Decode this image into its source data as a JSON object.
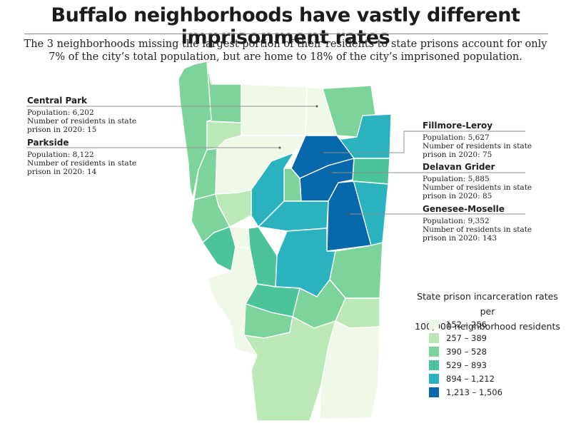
{
  "title": "Buffalo neighborhoods have vastly different imprisonment rates",
  "subtitle": "The 3 neighborhoods missing the largest portion of their residents to state prisons account for only 7% of the city’s total population, but are home to 18% of the city’s imprisoned population.",
  "callouts": [
    {
      "name": "Central Park",
      "lines": [
        "Population: 6,202",
        "Number of residents in state",
        "prison in 2020: 15"
      ]
    },
    {
      "name": "Parkside",
      "lines": [
        "Population: 8,122",
        "Number of residents in state",
        "prison in 2020: 14"
      ]
    },
    {
      "name": "Fillmore-Leroy",
      "lines": [
        "Population: 5,627",
        "Number of residents in state",
        "prison in 2020: 75"
      ]
    },
    {
      "name": "Delavan Grider",
      "lines": [
        "Population: 5,885",
        "Number of residents in state",
        "prison in 2020: 85"
      ]
    },
    {
      "name": "Genesee-Moselle",
      "lines": [
        "Population: 9,352",
        "Number of residents in state",
        "prison in 2020: 143"
      ]
    }
  ],
  "legend": {
    "title_lines": [
      "State prison incarceration rates per",
      "100,000 neighborhood residents"
    ],
    "items": [
      {
        "label": "152 – 256",
        "color": "#f0f8e8"
      },
      {
        "label": "257 – 389",
        "color": "#bae8b6"
      },
      {
        "label": "390 – 528",
        "color": "#7dd49a"
      },
      {
        "label": "529 – 893",
        "color": "#4cc49a"
      },
      {
        "label": "894 – 1,212",
        "color": "#2ab3bf"
      },
      {
        "label": "1,213 – 1,506",
        "color": "#0868ac"
      }
    ]
  }
}
